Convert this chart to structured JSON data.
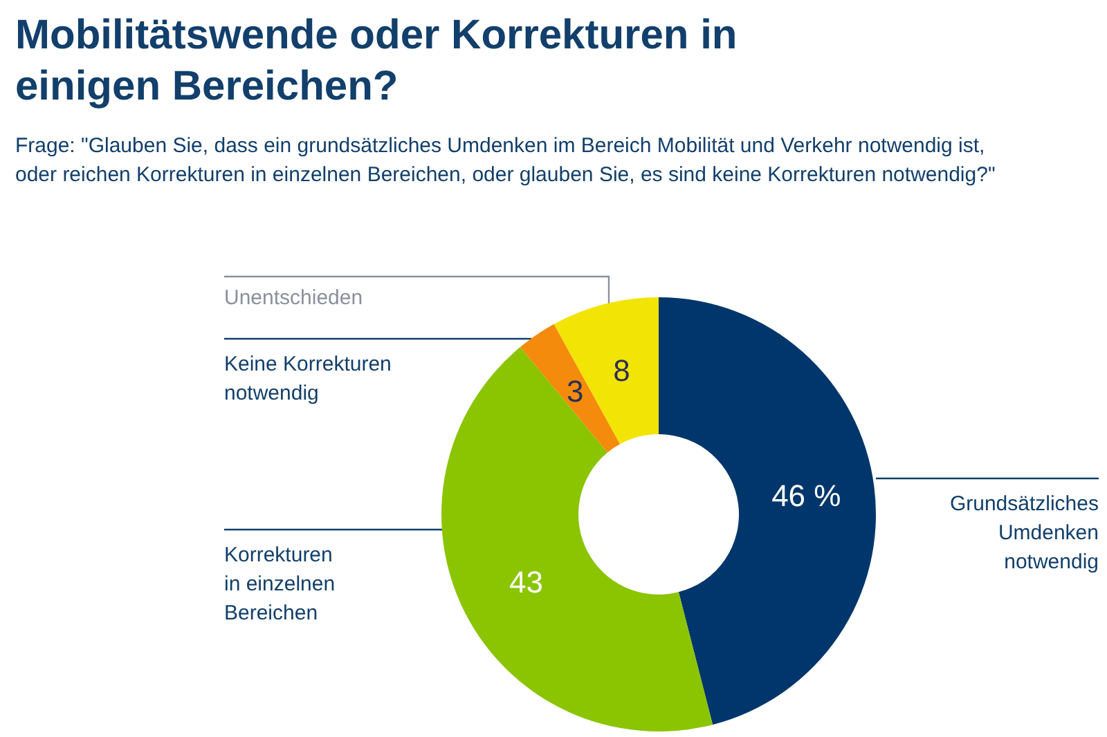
{
  "chart_data": {
    "type": "donut",
    "title": "Mobilitätswende oder Korrekturen in einigen Bereichen?",
    "subtitle": "Frage: \"Glauben Sie, dass ein grundsätzliches Umdenken im Bereich Mobilität und Verkehr notwendig ist, oder reichen Korrekturen in einzelnen Bereichen, oder glauben Sie, es sind keine Korrekturen notwendig?\"",
    "categories": [
      "Grundsätzliches Umdenken notwendig",
      "Korrekturen in einzelnen Bereichen",
      "Keine Korrekturen notwendig",
      "Unentschieden"
    ],
    "values": [
      46,
      43,
      3,
      8
    ],
    "colors": [
      "#00366b",
      "#8bc400",
      "#f58b0c",
      "#f2e404"
    ],
    "value_labels": [
      "46 %",
      "43",
      "3",
      "8"
    ]
  }
}
